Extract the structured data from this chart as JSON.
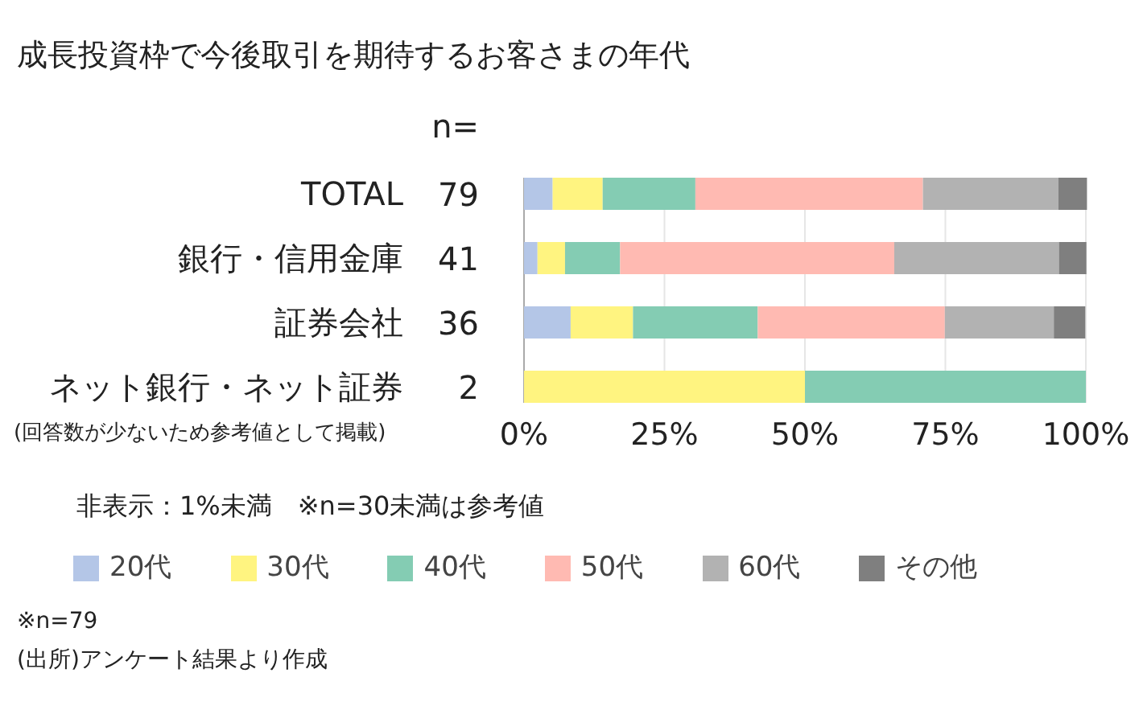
{
  "chart_data": {
    "type": "bar",
    "orientation": "horizontal",
    "stacked": true,
    "title": "成長投資枠で今後取引を期待するお客さまの年代",
    "categories": [
      "TOTAL",
      "銀行・信用金庫",
      "証券会社",
      "ネット銀行・ネット証券"
    ],
    "series": [
      {
        "name": "20代",
        "color": "#b4c6e7",
        "values": [
          5.1,
          2.4,
          8.3,
          null
        ]
      },
      {
        "name": "30代",
        "color": "#fff480",
        "values": [
          8.9,
          4.9,
          11.1,
          50.0
        ]
      },
      {
        "name": "40代",
        "color": "#84ccb3",
        "values": [
          16.5,
          9.8,
          22.2,
          50.0
        ]
      },
      {
        "name": "50代",
        "color": "#ffbab2",
        "values": [
          40.5,
          48.8,
          33.3,
          null
        ]
      },
      {
        "name": "60代",
        "color": "#b2b2b2",
        "values": [
          24.1,
          29.3,
          19.4,
          null
        ]
      },
      {
        "name": "その他",
        "color": "#7f7f7f",
        "values": [
          5.1,
          4.9,
          5.6,
          null
        ]
      }
    ],
    "xlim": [
      0,
      100
    ],
    "xticks": [
      {
        "value": 0,
        "label": "0%"
      },
      {
        "value": 25,
        "label": "25%"
      },
      {
        "value": 50,
        "label": "50%"
      },
      {
        "value": 75,
        "label": "75%"
      },
      {
        "value": 100,
        "label": "100%"
      }
    ],
    "grid": "x",
    "legend": "bottom",
    "annotations": [
      "n=",
      "79",
      "41",
      "36",
      "2",
      "(回答数が少ないため参考値として掲載)",
      "非表示：1%未満　※n=30未満は参考値",
      "※n=79",
      "(出所)アンケート結果より作成"
    ]
  }
}
